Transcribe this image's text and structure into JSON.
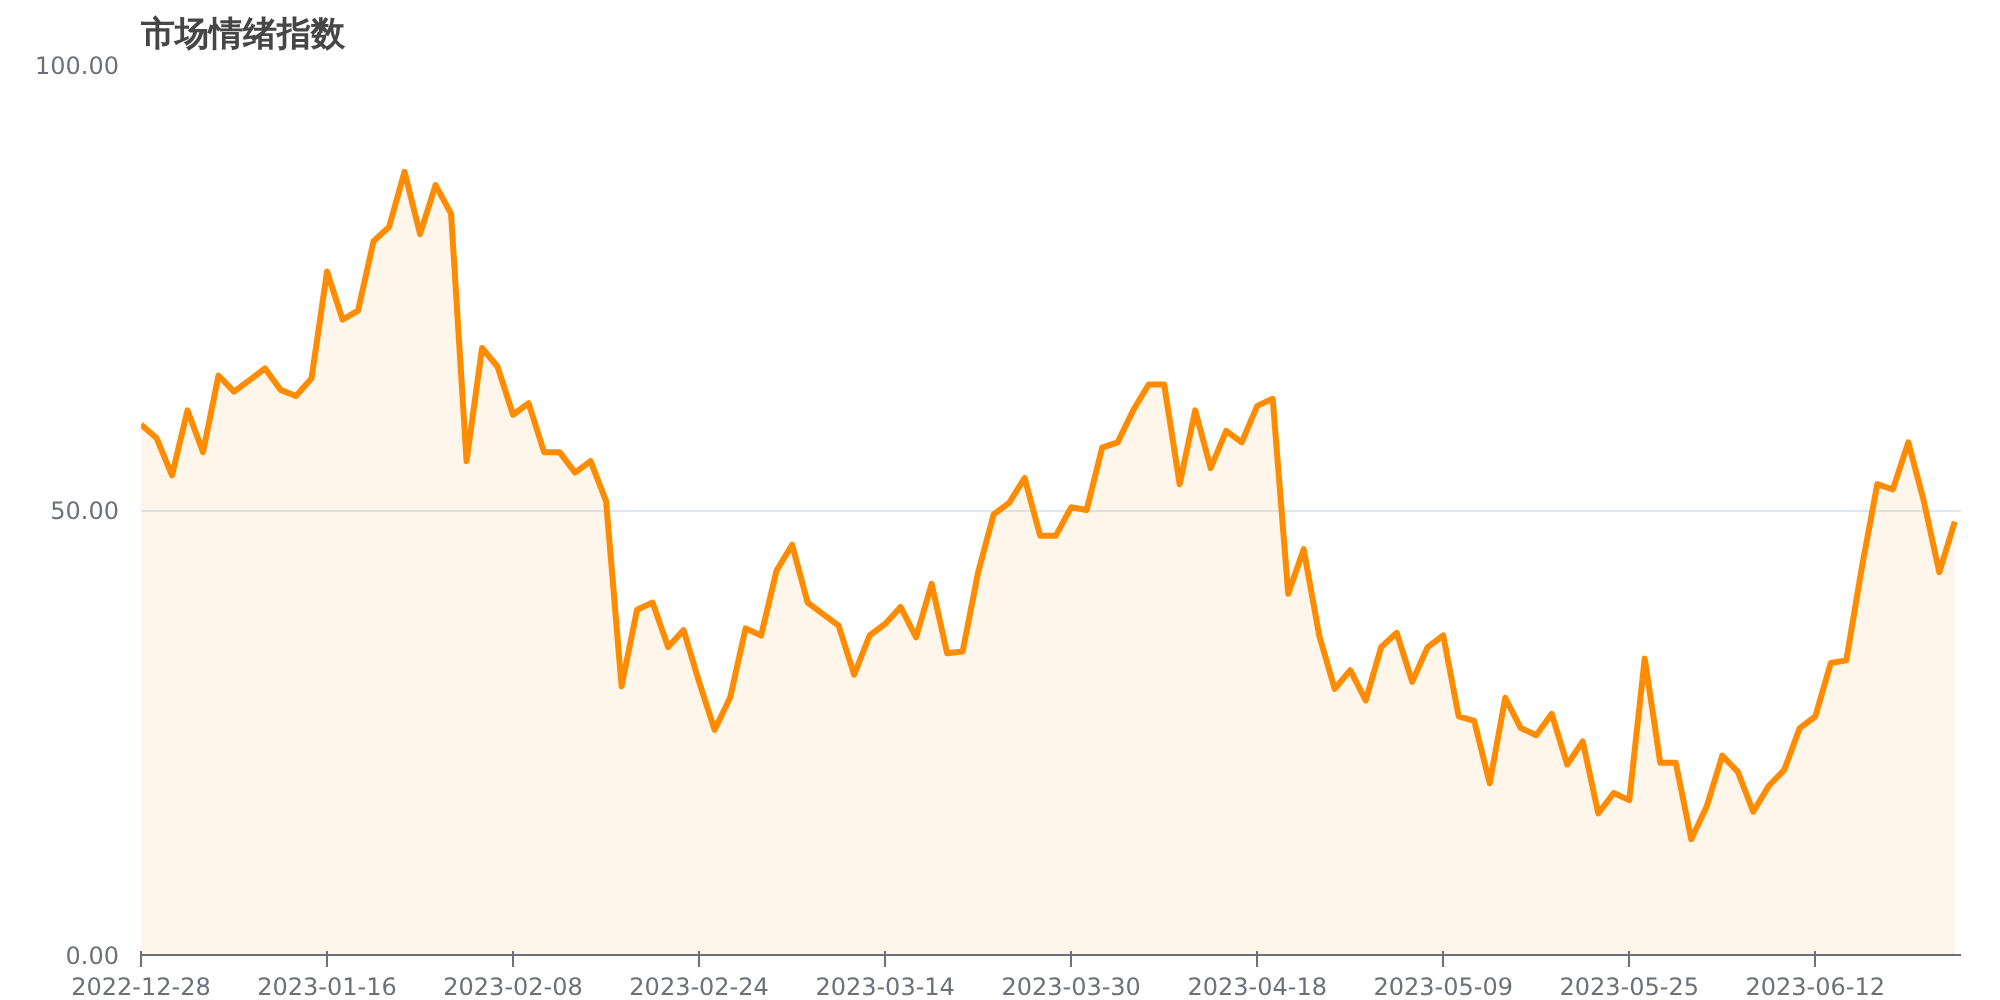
{
  "chart_data": {
    "type": "area",
    "title": "市场情绪指数",
    "categories": [
      "2022-12-28",
      null,
      null,
      null,
      null,
      null,
      null,
      null,
      null,
      null,
      null,
      null,
      "2023-01-16",
      null,
      null,
      null,
      null,
      null,
      null,
      null,
      null,
      null,
      null,
      null,
      "2023-02-08",
      null,
      null,
      null,
      null,
      null,
      null,
      null,
      null,
      null,
      null,
      null,
      "2023-02-24",
      null,
      null,
      null,
      null,
      null,
      null,
      null,
      null,
      null,
      null,
      null,
      "2023-03-14",
      null,
      null,
      null,
      null,
      null,
      null,
      null,
      null,
      null,
      null,
      null,
      "2023-03-30",
      null,
      null,
      null,
      null,
      null,
      null,
      null,
      null,
      null,
      null,
      null,
      "2023-04-18",
      null,
      null,
      null,
      null,
      null,
      null,
      null,
      null,
      null,
      null,
      null,
      "2023-05-09",
      null,
      null,
      null,
      null,
      null,
      null,
      null,
      null,
      null,
      null,
      null,
      "2023-05-25",
      null,
      null,
      null,
      null,
      null,
      null,
      null,
      null,
      null,
      null,
      null,
      "2023-06-12",
      null,
      null,
      null,
      null,
      null,
      null,
      null,
      null,
      null
    ],
    "series": [
      {
        "color": "#ff8c00",
        "values": [
          59.6,
          58.1,
          53.9,
          61.2,
          56.5,
          65.1,
          63.3,
          64.6,
          65.9,
          63.5,
          62.8,
          64.8,
          76.8,
          71.4,
          72.4,
          80.2,
          81.8,
          88.0,
          81.0,
          86.5,
          83.3,
          55.5,
          68.2,
          66.1,
          60.7,
          62.0,
          56.5,
          56.5,
          54.2,
          55.5,
          51.0,
          30.2,
          38.8,
          39.6,
          34.6,
          36.5,
          30.7,
          25.3,
          28.9,
          36.7,
          35.9,
          43.2,
          46.1,
          39.6,
          38.3,
          37.0,
          31.5,
          35.9,
          37.2,
          39.1,
          35.7,
          41.7,
          33.9,
          34.1,
          43.0,
          49.5,
          50.8,
          53.6,
          47.1,
          47.1,
          50.3,
          50.0,
          57.0,
          57.6,
          61.2,
          64.1,
          64.1,
          52.9,
          61.2,
          54.7,
          58.9,
          57.6,
          61.7,
          62.5,
          40.6,
          45.6,
          35.9,
          29.9,
          32.0,
          28.6,
          34.6,
          36.2,
          30.7,
          34.6,
          35.9,
          26.8,
          26.3,
          19.3,
          28.9,
          25.5,
          24.7,
          27.1,
          21.4,
          24.0,
          15.9,
          18.2,
          17.4,
          33.3,
          21.6,
          21.6,
          13.0,
          16.7,
          22.4,
          20.6,
          16.1,
          19.0,
          20.8,
          25.5,
          26.8,
          32.8,
          33.1,
          43.5,
          52.9,
          52.3,
          57.6,
          51.0,
          43.0,
          48.7
        ]
      }
    ],
    "ylim": [
      0,
      100
    ],
    "yticks": [
      {
        "value": 0,
        "label": "0.00"
      },
      {
        "value": 50,
        "label": "50.00"
      },
      {
        "value": 100,
        "label": "100.00"
      }
    ],
    "grid": "y",
    "marker": "none",
    "line_style": "solid"
  }
}
